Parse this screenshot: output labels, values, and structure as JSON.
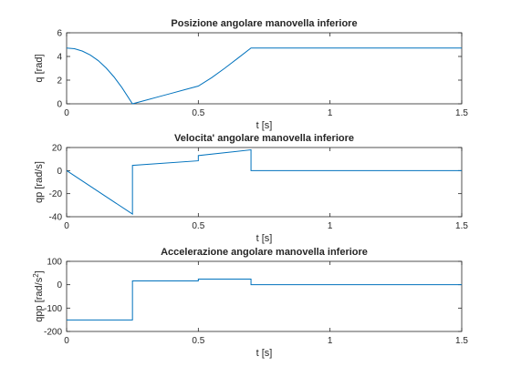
{
  "colors": {
    "line": "#0072BD",
    "axes": "#262626",
    "background": "#ffffff"
  },
  "chart_data": [
    {
      "type": "line",
      "title": "Posizione angolare manovella inferiore",
      "xlabel": "t [s]",
      "ylabel": "q [rad]",
      "ylabel_sup": "",
      "ylabel_post": "",
      "xlim": [
        0,
        1.5
      ],
      "ylim": [
        0,
        6
      ],
      "xticks": [
        0,
        0.5,
        1,
        1.5
      ],
      "xtick_labels": [
        "0",
        "0.5",
        "1",
        "1.5"
      ],
      "yticks": [
        0,
        2,
        4,
        6
      ],
      "ytick_labels": [
        "0",
        "2",
        "4",
        "6"
      ],
      "grid": false,
      "series": [
        {
          "x": [
            0,
            0.03,
            0.06,
            0.09,
            0.12,
            0.15,
            0.18,
            0.21,
            0.25,
            0.3,
            0.35,
            0.4,
            0.45,
            0.5,
            0.55,
            0.6,
            0.65,
            0.7,
            1.5
          ],
          "y": [
            4.71,
            4.65,
            4.45,
            4.12,
            3.65,
            3.03,
            2.27,
            1.37,
            0.0,
            0.3,
            0.6,
            0.9,
            1.2,
            1.5,
            2.2,
            3.0,
            3.85,
            4.71,
            4.71
          ]
        }
      ]
    },
    {
      "type": "line",
      "title": "Velocita' angolare manovella inferiore",
      "xlabel": "t [s]",
      "ylabel": "qp [rad/s]",
      "ylabel_sup": "",
      "ylabel_post": "",
      "xlim": [
        0,
        1.5
      ],
      "ylim": [
        -40,
        20
      ],
      "xticks": [
        0,
        0.5,
        1,
        1.5
      ],
      "xtick_labels": [
        "0",
        "0.5",
        "1",
        "1.5"
      ],
      "yticks": [
        -40,
        -20,
        0,
        20
      ],
      "ytick_labels": [
        "-40",
        "-20",
        "0",
        "20"
      ],
      "grid": false,
      "series": [
        {
          "x": [
            0,
            0.25,
            0.25,
            0.5,
            0.5,
            0.7,
            0.7,
            1.5
          ],
          "y": [
            0,
            -37.7,
            4.5,
            8.5,
            13,
            18,
            0,
            0
          ]
        }
      ]
    },
    {
      "type": "line",
      "title": "Accelerazione angolare manovella inferiore",
      "xlabel": "t [s]",
      "ylabel": "qpp [rad/s",
      "ylabel_sup": "2",
      "ylabel_post": "]",
      "xlim": [
        0,
        1.5
      ],
      "ylim": [
        -200,
        100
      ],
      "xticks": [
        0,
        0.5,
        1,
        1.5
      ],
      "xtick_labels": [
        "0",
        "0.5",
        "1",
        "1.5"
      ],
      "yticks": [
        -200,
        -100,
        0,
        100
      ],
      "ytick_labels": [
        "-200",
        "-100",
        "0",
        "100"
      ],
      "grid": false,
      "series": [
        {
          "x": [
            0,
            0.25,
            0.25,
            0.5,
            0.5,
            0.7,
            0.7,
            1.5
          ],
          "y": [
            -151,
            -151,
            16,
            16,
            24,
            24,
            0,
            0
          ]
        }
      ]
    }
  ]
}
